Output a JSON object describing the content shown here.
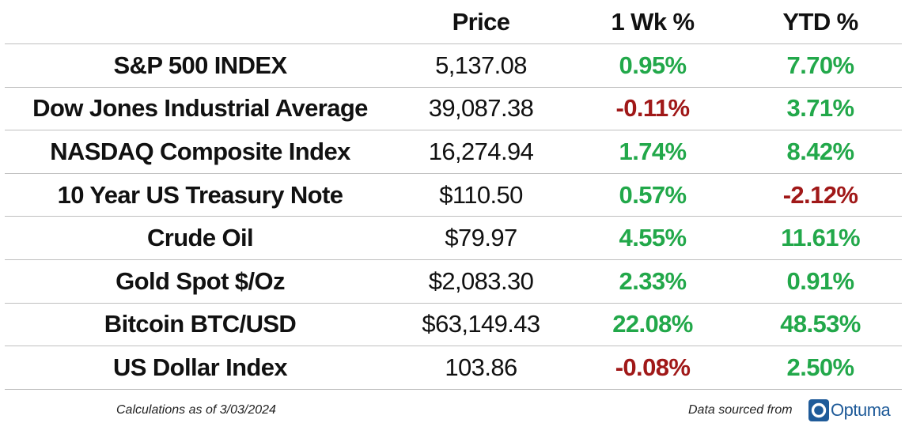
{
  "table": {
    "headers": {
      "name": "",
      "price": "Price",
      "week": "1 Wk %",
      "ytd": "YTD %"
    },
    "rows": [
      {
        "name": "S&P 500 INDEX",
        "price": "5,137.08",
        "week": "0.95%",
        "ytd": "7.70%"
      },
      {
        "name": "Dow Jones Industrial Average",
        "price": "39,087.38",
        "week": "-0.11%",
        "ytd": "3.71%"
      },
      {
        "name": "NASDAQ Composite Index",
        "price": "16,274.94",
        "week": "1.74%",
        "ytd": "8.42%"
      },
      {
        "name": "10 Year US Treasury Note",
        "price": "$110.50",
        "week": "0.57%",
        "ytd": "-2.12%"
      },
      {
        "name": "Crude Oil",
        "price": "$79.97",
        "week": "4.55%",
        "ytd": "11.61%"
      },
      {
        "name": "Gold Spot $/Oz",
        "price": "$2,083.30",
        "week": "2.33%",
        "ytd": "0.91%"
      },
      {
        "name": "Bitcoin BTC/USD",
        "price": "$63,149.43",
        "week": "22.08%",
        "ytd": "48.53%"
      },
      {
        "name": "US Dollar Index",
        "price": "103.86",
        "week": "-0.08%",
        "ytd": "2.50%"
      }
    ]
  },
  "footer": {
    "left": "Calculations as of 3/03/2024",
    "right": "Data sourced from",
    "logo_text": "Optuma",
    "logo_icon": "optuma-logo-icon"
  },
  "colors": {
    "positive": "#22a84a",
    "negative": "#a01818",
    "brand": "#1f5b99"
  }
}
